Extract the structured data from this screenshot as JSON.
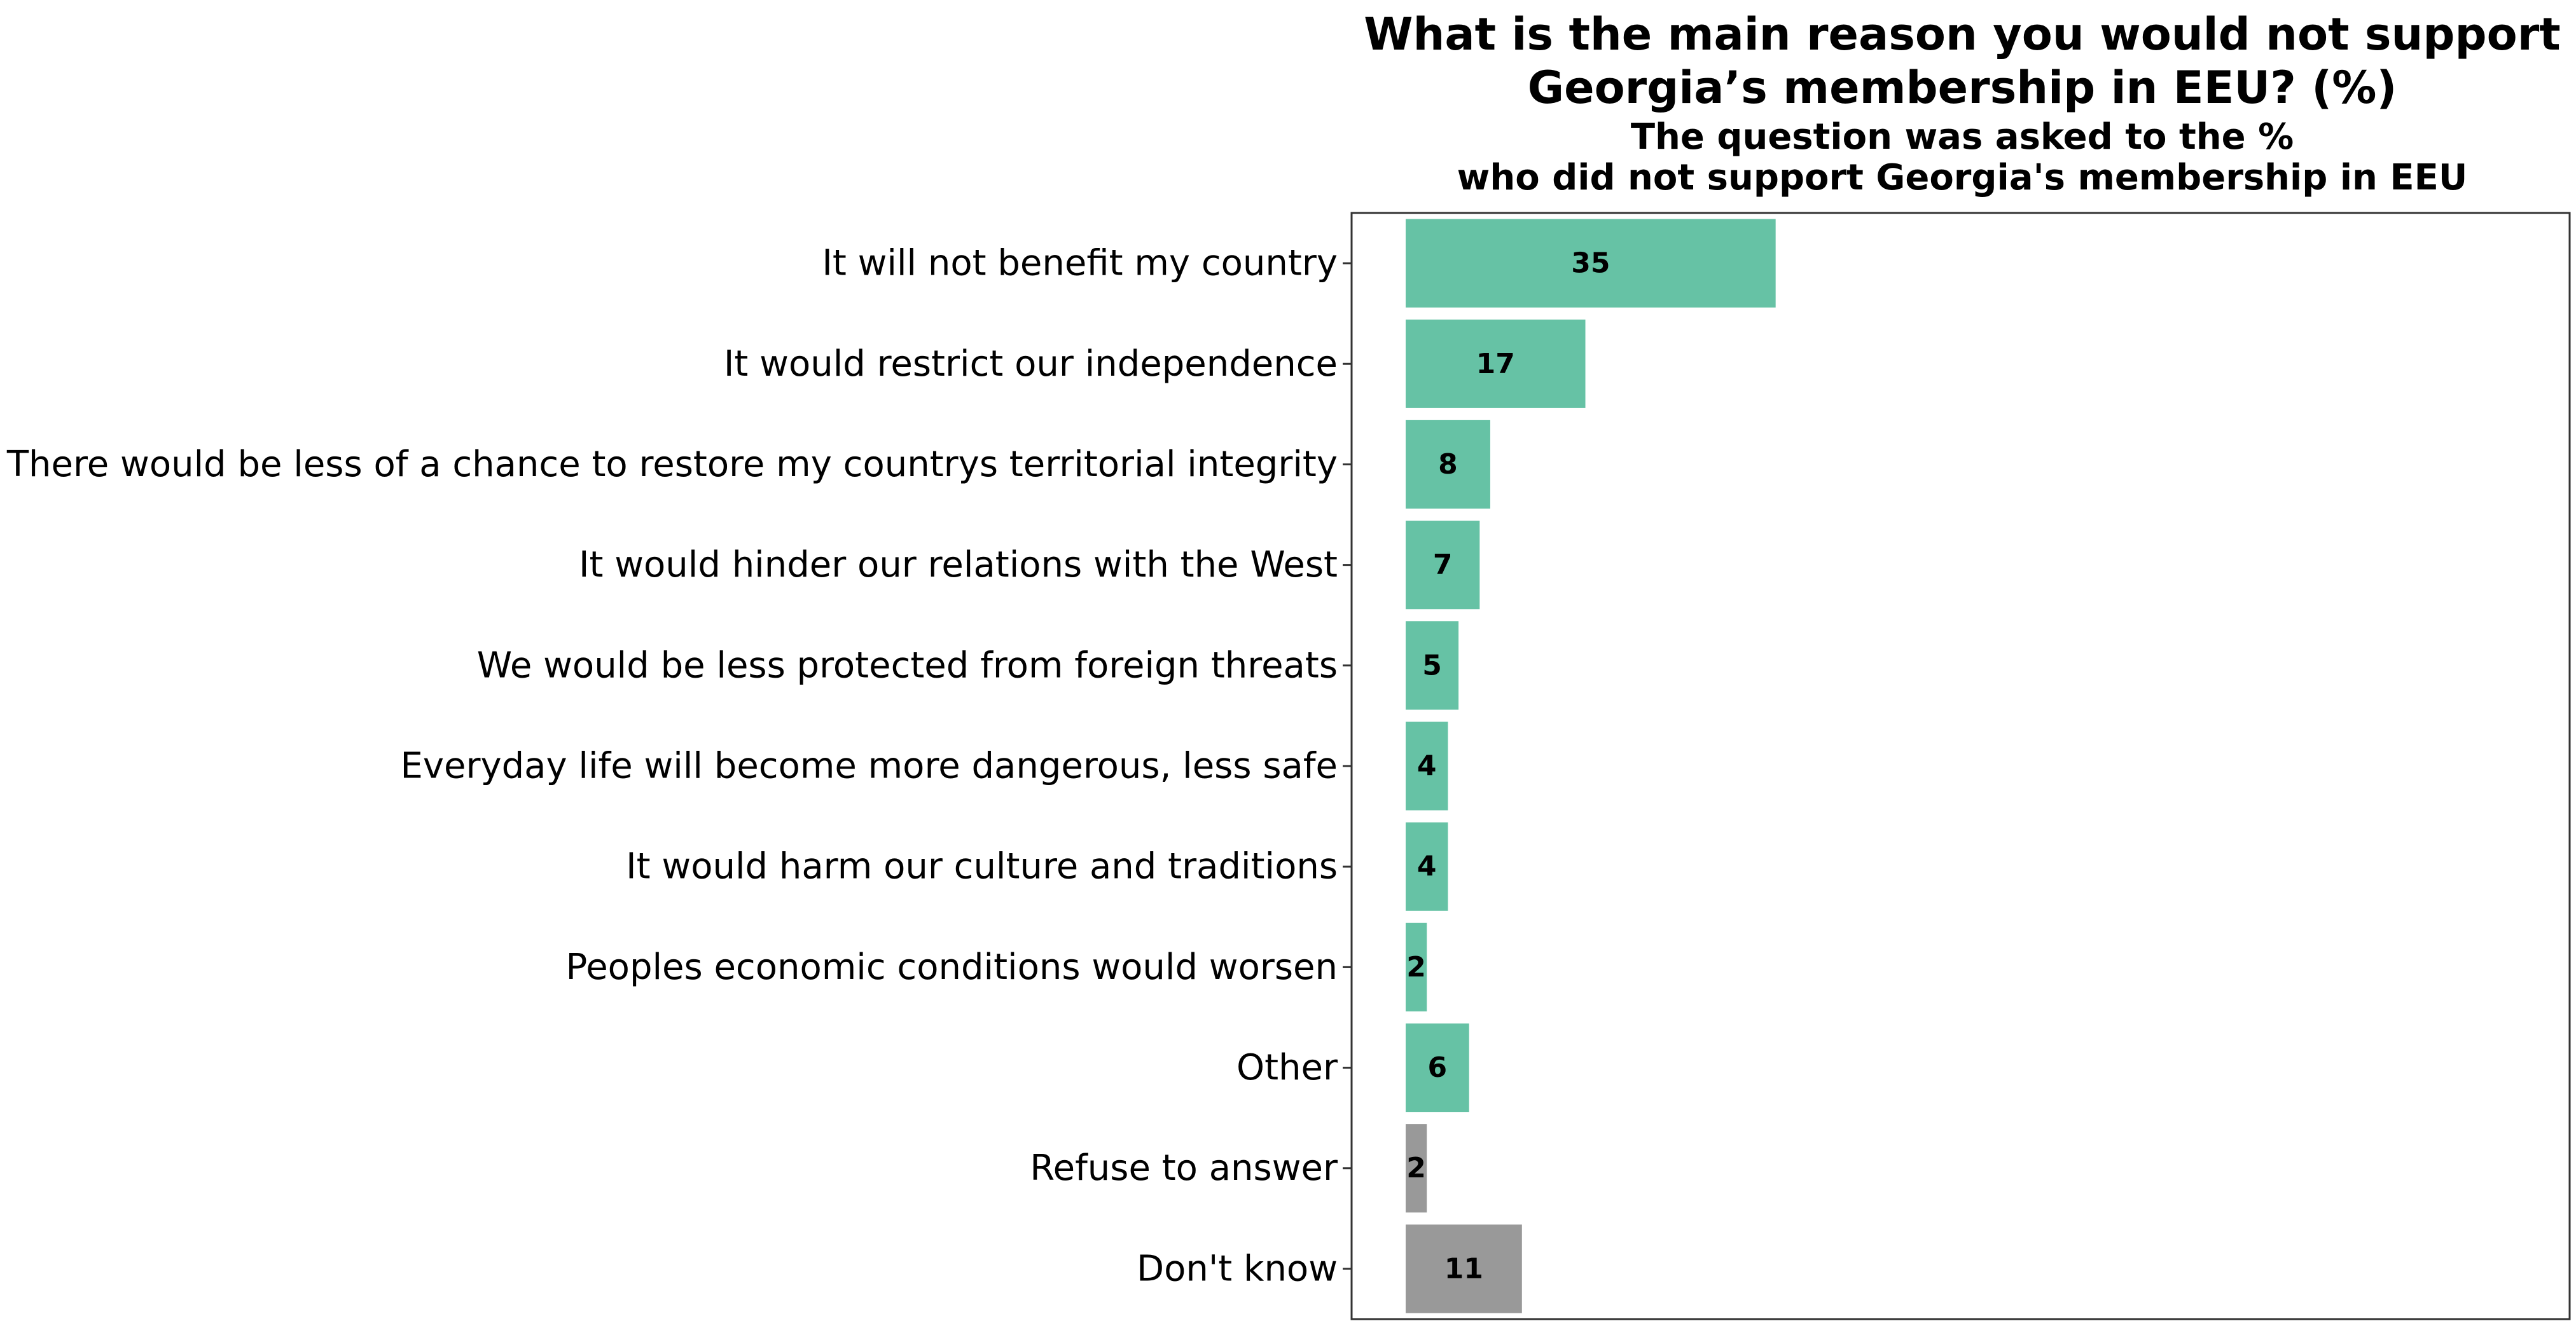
{
  "chart_data": {
    "type": "bar",
    "orientation": "horizontal",
    "title": [
      "What is the main reason you would not support",
      "Georgia’s membership in EEU? (%)"
    ],
    "subtitle": [
      "The question was asked to the %",
      "who did not support Georgia's membership in EEU"
    ],
    "categories": [
      "It will not benefit my country",
      "It would restrict our independence",
      "There would be less of a chance to restore my countrys territorial integrity",
      "It would hinder our relations with the West",
      "We would be less protected from foreign threats",
      "Everyday life will become more dangerous, less safe",
      "It would harm our culture and traditions",
      "Peoples economic conditions would worsen",
      "Other",
      "Refuse to answer",
      "Don't know"
    ],
    "values": [
      35,
      17,
      8,
      7,
      5,
      4,
      4,
      2,
      6,
      2,
      11
    ],
    "value_labels": [
      "35",
      "17",
      "8",
      "7",
      "5",
      "4",
      "4",
      "2",
      "6",
      "2",
      "11"
    ],
    "bar_colors": [
      "#66c2a5",
      "#66c2a5",
      "#66c2a5",
      "#66c2a5",
      "#66c2a5",
      "#66c2a5",
      "#66c2a5",
      "#66c2a5",
      "#66c2a5",
      "#999999",
      "#999999"
    ],
    "xlim": [
      0,
      105
    ],
    "grid": false,
    "legend": "none"
  }
}
